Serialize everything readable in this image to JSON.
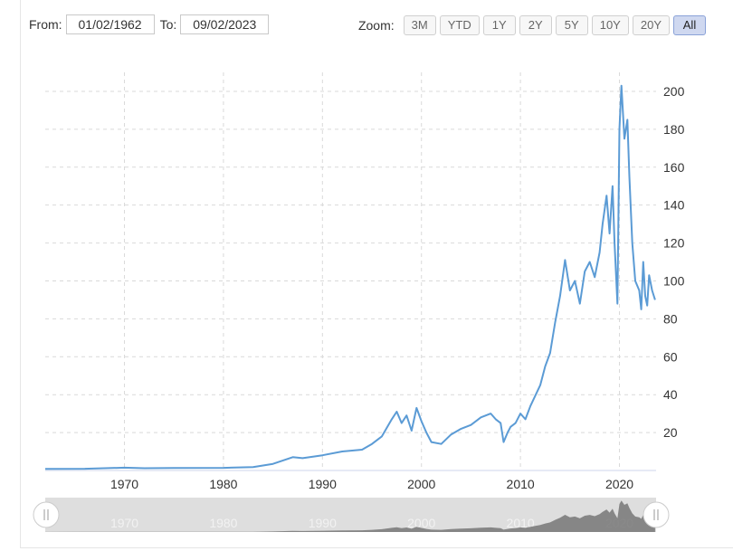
{
  "range": {
    "from_label": "From:",
    "from_value": "01/02/1962",
    "to_label": "To:",
    "to_value": "09/02/2023"
  },
  "zoom": {
    "label": "Zoom:",
    "buttons": [
      "3M",
      "YTD",
      "1Y",
      "2Y",
      "5Y",
      "10Y",
      "20Y",
      "All"
    ],
    "active": "All"
  },
  "colors": {
    "line": "#5b9bd5",
    "navigator_fill": "#777777"
  },
  "chart_data": {
    "type": "line",
    "title": "",
    "xlabel": "",
    "ylabel": "",
    "xlim": [
      1962,
      2023.7
    ],
    "ylim": [
      0,
      210
    ],
    "x_ticks": [
      1970,
      1980,
      1990,
      2000,
      2010,
      2020
    ],
    "y_ticks": [
      20,
      40,
      60,
      80,
      100,
      120,
      140,
      160,
      180,
      200
    ],
    "grid": true,
    "series": [
      {
        "x": [
          1962,
          1966,
          1970,
          1972,
          1975,
          1980,
          1983,
          1985,
          1987,
          1988,
          1990,
          1992,
          1994,
          1995,
          1996,
          1997,
          1997.5,
          1998,
          1998.5,
          1999,
          1999.5,
          2000,
          2000.5,
          2001,
          2002,
          2003,
          2004,
          2005,
          2006,
          2007,
          2007.5,
          2008,
          2008.3,
          2008.7,
          2009,
          2009.5,
          2010,
          2010.5,
          2011,
          2012,
          2012.5,
          2013,
          2013.5,
          2014,
          2014.5,
          2015,
          2015.5,
          2016,
          2016.5,
          2017,
          2017.5,
          2018,
          2018.3,
          2018.7,
          2019,
          2019.3,
          2019.5,
          2019.8,
          2020,
          2020.2,
          2020.5,
          2020.8,
          2021,
          2021.3,
          2021.6,
          2022,
          2022.2,
          2022.4,
          2022.6,
          2022.8,
          2023,
          2023.3,
          2023.6
        ],
        "y": [
          0.8,
          0.9,
          1.5,
          1.2,
          1.3,
          1.4,
          1.8,
          3.5,
          7,
          6.5,
          8,
          10,
          11,
          14,
          18,
          27,
          31,
          25,
          29,
          21,
          33,
          26,
          20,
          15,
          14,
          19,
          22,
          24,
          28,
          30,
          27,
          25,
          15,
          20,
          23,
          25,
          30,
          27,
          34,
          45,
          55,
          62,
          78,
          92,
          111,
          95,
          100,
          88,
          105,
          110,
          102,
          115,
          130,
          145,
          125,
          150,
          120,
          88,
          180,
          203,
          175,
          185,
          155,
          120,
          100,
          95,
          85,
          110,
          92,
          87,
          103,
          95,
          90
        ]
      }
    ]
  }
}
